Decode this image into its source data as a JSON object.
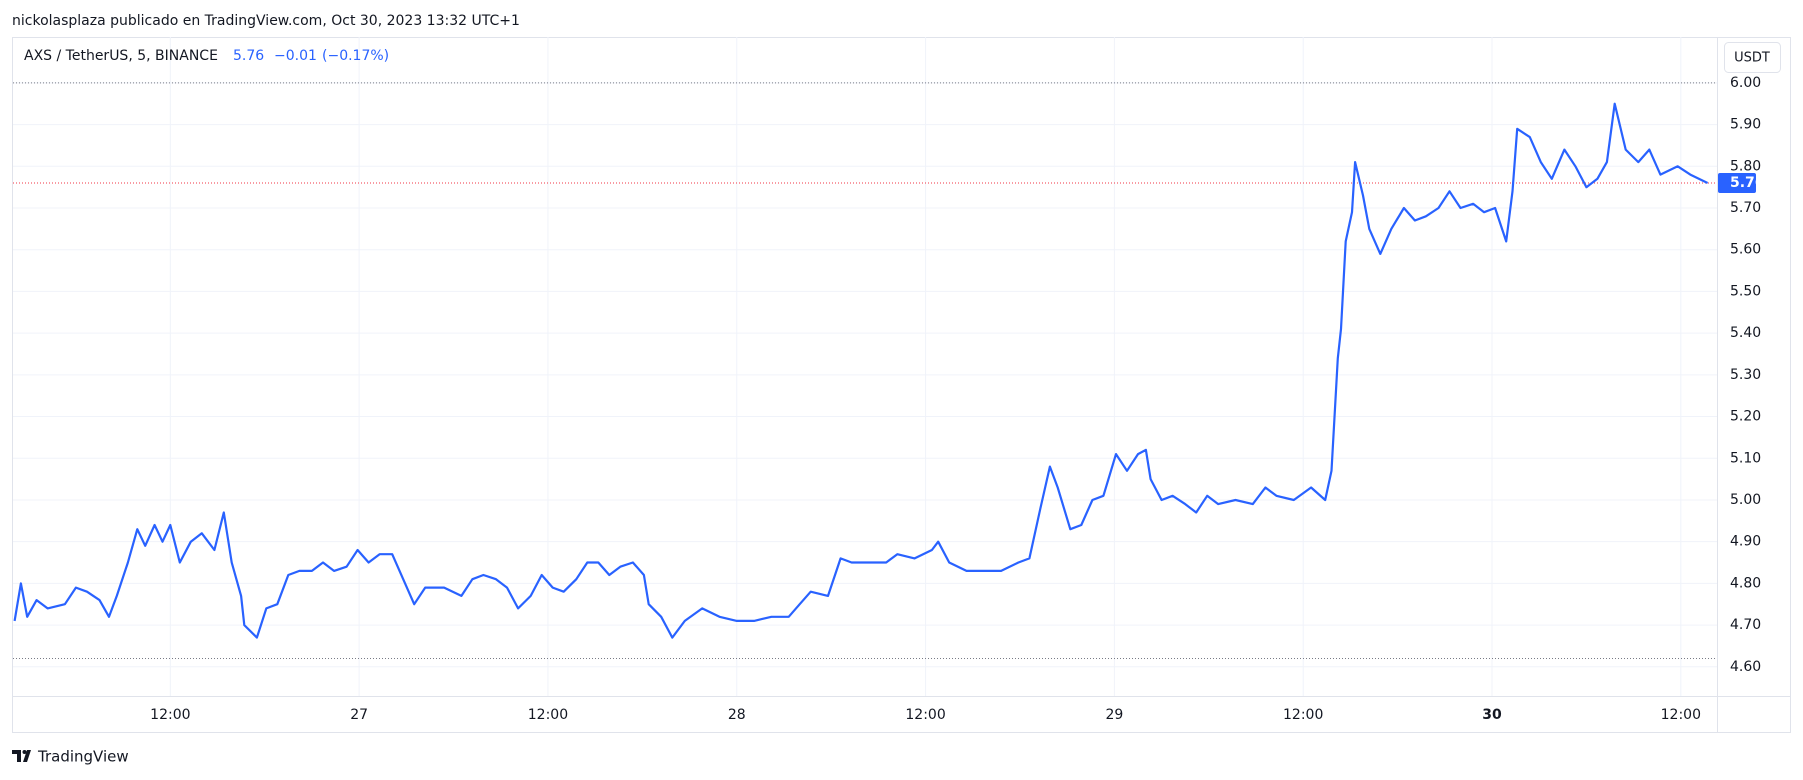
{
  "header": "nickolasplaza publicado en TradingView.com, Oct 30, 2023 13:32 UTC+1",
  "footer": "TradingView",
  "chart_data": {
    "type": "line",
    "currency": "USDT",
    "last_price": 5.76,
    "change": {
      "value": -0.01,
      "label": "−0.01"
    },
    "change_percent": {
      "value": -0.17,
      "label": "(−0.17%)"
    },
    "high_line": 6.0,
    "low_line": 4.62,
    "grid": true,
    "x": [
      2.1,
      2.5,
      2.9,
      3.5,
      4.2,
      5.3,
      6.0,
      6.7,
      7.5,
      8.1,
      8.6,
      9.3,
      9.9,
      10.4,
      11.0,
      11.5,
      12.0,
      12.6,
      13.3,
      14.0,
      14.8,
      15.4,
      15.9,
      16.5,
      16.7,
      17.5,
      18.1,
      18.8,
      19.5,
      20.2,
      21.0,
      21.7,
      22.4,
      23.2,
      23.9,
      24.6,
      25.3,
      26.1,
      26.8,
      27.5,
      28.2,
      29.4,
      30.5,
      31.2,
      31.9,
      32.7,
      33.4,
      34.1,
      34.9,
      35.6,
      36.3,
      37.0,
      37.8,
      38.5,
      39.2,
      39.9,
      40.6,
      41.4,
      42.1,
      42.4,
      43.2,
      43.9,
      44.7,
      45.8,
      46.9,
      48.0,
      49.1,
      50.2,
      51.3,
      52.0,
      52.7,
      53.8,
      54.6,
      55.3,
      56.4,
      57.5,
      58.2,
      59.3,
      60.4,
      60.8,
      61.5,
      62.6,
      63.7,
      64.8,
      65.9,
      66.6,
      67.3,
      67.9,
      68.4,
      69.2,
      69.9,
      70.6,
      71.3,
      72.1,
      72.8,
      73.5,
      74.0,
      74.3,
      75.0,
      75.7,
      76.5,
      77.2,
      77.9,
      78.6,
      79.7,
      80.8,
      81.6,
      82.3,
      83.4,
      84.5,
      85.4,
      85.8,
      86.2,
      86.4,
      86.7,
      87.1,
      87.3,
      87.8,
      88.2,
      88.9,
      89.6,
      90.4,
      91.1,
      91.8,
      92.6,
      93.3,
      94.0,
      94.8,
      95.5,
      96.2,
      96.9,
      97.3,
      97.6,
      98.4,
      99.1,
      99.8,
      100.6,
      101.3,
      102.0,
      102.7,
      103.3,
      103.8,
      104.5,
      105.3,
      106.0,
      106.7,
      107.8,
      108.6,
      109.7
    ],
    "series": [
      {
        "name": "AXS / TetherUS, 5, BINANCE",
        "color": "#2962ff",
        "values": [
          4.71,
          4.8,
          4.72,
          4.76,
          4.74,
          4.75,
          4.79,
          4.78,
          4.76,
          4.72,
          4.77,
          4.85,
          4.93,
          4.89,
          4.94,
          4.9,
          4.94,
          4.85,
          4.9,
          4.92,
          4.88,
          4.97,
          4.85,
          4.77,
          4.7,
          4.67,
          4.74,
          4.75,
          4.82,
          4.83,
          4.83,
          4.85,
          4.83,
          4.84,
          4.88,
          4.85,
          4.87,
          4.87,
          4.81,
          4.75,
          4.79,
          4.79,
          4.77,
          4.81,
          4.82,
          4.81,
          4.79,
          4.74,
          4.77,
          4.82,
          4.79,
          4.78,
          4.81,
          4.85,
          4.85,
          4.82,
          4.84,
          4.85,
          4.82,
          4.75,
          4.72,
          4.67,
          4.71,
          4.74,
          4.72,
          4.71,
          4.71,
          4.72,
          4.72,
          4.75,
          4.78,
          4.77,
          4.86,
          4.85,
          4.85,
          4.85,
          4.87,
          4.86,
          4.88,
          4.9,
          4.85,
          4.83,
          4.83,
          4.83,
          4.85,
          4.86,
          4.98,
          5.08,
          5.03,
          4.93,
          4.94,
          5.0,
          5.01,
          5.11,
          5.07,
          5.11,
          5.12,
          5.05,
          5.0,
          5.01,
          4.99,
          4.97,
          5.01,
          4.99,
          5.0,
          4.99,
          5.03,
          5.01,
          5.0,
          5.03,
          5.0,
          5.07,
          5.34,
          5.41,
          5.62,
          5.69,
          5.81,
          5.73,
          5.65,
          5.59,
          5.65,
          5.7,
          5.67,
          5.68,
          5.7,
          5.74,
          5.7,
          5.71,
          5.69,
          5.7,
          5.62,
          5.74,
          5.89,
          5.87,
          5.81,
          5.77,
          5.84,
          5.8,
          5.75,
          5.77,
          5.81,
          5.95,
          5.84,
          5.81,
          5.84,
          5.78,
          5.8,
          5.78,
          5.76
        ]
      }
    ],
    "xlim": [
      2,
      110.3
    ],
    "xticks": [
      {
        "value": 12,
        "label": "12:00"
      },
      {
        "value": 24,
        "label": "27"
      },
      {
        "value": 36,
        "label": "12:00"
      },
      {
        "value": 48,
        "label": "28"
      },
      {
        "value": 60,
        "label": "12:00"
      },
      {
        "value": 72,
        "label": "29"
      },
      {
        "value": 84,
        "label": "12:00"
      },
      {
        "value": 96,
        "label": "30",
        "bold": true
      },
      {
        "value": 108,
        "label": "12:00"
      }
    ],
    "ylim": [
      4.53,
      6.11
    ],
    "yticks": [
      {
        "value": 4.6,
        "label": "4.60"
      },
      {
        "value": 4.7,
        "label": "4.70"
      },
      {
        "value": 4.8,
        "label": "4.80"
      },
      {
        "value": 4.9,
        "label": "4.90"
      },
      {
        "value": 5.0,
        "label": "5.00"
      },
      {
        "value": 5.1,
        "label": "5.10"
      },
      {
        "value": 5.2,
        "label": "5.20"
      },
      {
        "value": 5.3,
        "label": "5.30"
      },
      {
        "value": 5.4,
        "label": "5.40"
      },
      {
        "value": 5.5,
        "label": "5.50"
      },
      {
        "value": 5.6,
        "label": "5.60"
      },
      {
        "value": 5.7,
        "label": "5.70"
      },
      {
        "value": 5.8,
        "label": "5.80"
      },
      {
        "value": 5.9,
        "label": "5.90"
      },
      {
        "value": 6.0,
        "label": "6.00"
      }
    ]
  }
}
